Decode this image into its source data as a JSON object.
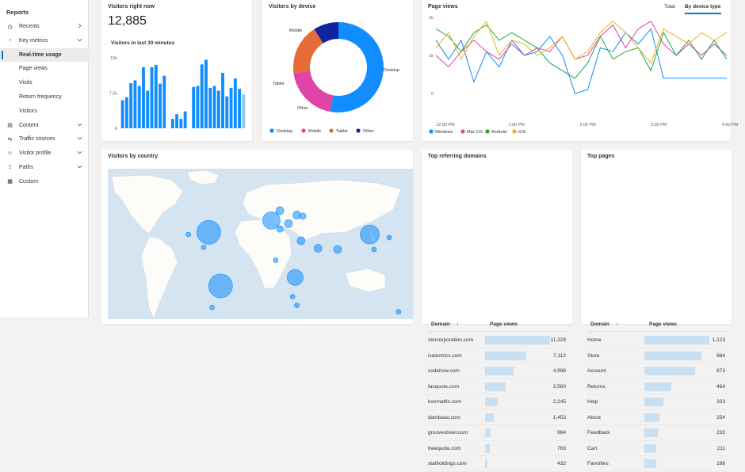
{
  "sidebar": {
    "title": "Reports",
    "items": [
      {
        "label": "Recents",
        "icon": "clock-icon",
        "chev": ">"
      },
      {
        "label": "Key metrics",
        "icon": "gauge-icon",
        "chev": "v"
      },
      {
        "label": "Real-time usage",
        "active": true
      },
      {
        "label": "Page views"
      },
      {
        "label": "Visits"
      },
      {
        "label": "Return frequency"
      },
      {
        "label": "Visitors"
      },
      {
        "label": "Content",
        "icon": "document-icon",
        "chev": "v"
      },
      {
        "label": "Traffic sources",
        "icon": "signpost-icon",
        "chev": "v"
      },
      {
        "label": "Visitor profile",
        "icon": "person-icon",
        "chev": "v"
      },
      {
        "label": "Paths",
        "icon": "path-icon",
        "chev": "v"
      },
      {
        "label": "Custom",
        "icon": "grid-icon"
      }
    ]
  },
  "visitors_now": {
    "title": "Visitors right now",
    "count": "12,885",
    "subtitle": "Visitors in last 30 minutes",
    "y_ticks": [
      "15k",
      "7.5k",
      "0"
    ]
  },
  "device": {
    "title": "Visitors by device",
    "labels": {
      "desktop": "Desktop",
      "mobile": "Mobile",
      "tablet": "Tablet",
      "other": "Other"
    },
    "legend": [
      "Desktop",
      "Mobile",
      "Tablet",
      "Other"
    ],
    "colors": [
      "#118dff",
      "#e044a7",
      "#e66c37",
      "#12239e"
    ]
  },
  "pageviews": {
    "title": "Page views",
    "tabs": [
      "Total",
      "By device type"
    ],
    "y_ticks": [
      "2k",
      "1k",
      "0"
    ],
    "x_ticks": [
      "12:00 PM",
      "1:00 PM",
      "2:00 PM",
      "3:00 PM",
      "4:00 PM"
    ],
    "legend": [
      "Windows",
      "Mac OS",
      "Android",
      "iOS"
    ],
    "colors": [
      "#118dff",
      "#e044a7",
      "#1aab40",
      "#e8b316"
    ]
  },
  "country": {
    "title": "Visitors by country"
  },
  "referring": {
    "title": "Top referring domains",
    "col_domain": "Domain",
    "col_views": "Page views",
    "rows": [
      {
        "domain": "zencorporation.com",
        "views": "11,329",
        "n": 11329
      },
      {
        "domain": "iselectrics.com",
        "views": "7,112",
        "n": 7112
      },
      {
        "domain": "codehow.com",
        "views": "4,998",
        "n": 4998
      },
      {
        "domain": "faxquote.com",
        "views": "3,560",
        "n": 3560
      },
      {
        "domain": "konmatfix.com",
        "views": "2,245",
        "n": 2245
      },
      {
        "domain": "dambase.com",
        "views": "1,453",
        "n": 1453
      },
      {
        "domain": "groovestreet.com",
        "views": "984",
        "n": 984
      },
      {
        "domain": "treequote.com",
        "views": "763",
        "n": 763
      },
      {
        "domain": "statholdings.com",
        "views": "432",
        "n": 432
      }
    ]
  },
  "toppages": {
    "title": "Top pages",
    "col_domain": "Domain",
    "col_views": "Page views",
    "rows": [
      {
        "domain": "Home",
        "views": "1,123",
        "n": 1123
      },
      {
        "domain": "Store",
        "views": "984",
        "n": 984
      },
      {
        "domain": "Account",
        "views": "873",
        "n": 873
      },
      {
        "domain": "Returns",
        "views": "464",
        "n": 464
      },
      {
        "domain": "Help",
        "views": "333",
        "n": 333
      },
      {
        "domain": "About",
        "views": "254",
        "n": 254
      },
      {
        "domain": "Feedback",
        "views": "232",
        "n": 232
      },
      {
        "domain": "Cart",
        "views": "211",
        "n": 211
      },
      {
        "domain": "Favorites",
        "views": "198",
        "n": 198
      }
    ]
  },
  "chart_data": [
    {
      "type": "bar",
      "title": "Visitors in last 30 minutes",
      "ylim": [
        0,
        15000
      ],
      "values": [
        6000,
        6600,
        9600,
        10200,
        9000,
        13000,
        8000,
        13000,
        13500,
        9500,
        11200,
        0,
        2000,
        3000,
        2000,
        3600,
        0,
        8800,
        9000,
        13600,
        14600,
        8600,
        9000,
        8000,
        11800,
        6800,
        8600,
        10600,
        8400,
        7200
      ],
      "highlight_last": true
    },
    {
      "type": "pie",
      "title": "Visitors by device",
      "categories": [
        "Desktop",
        "Mobile",
        "Tablet",
        "Other"
      ],
      "values": [
        53,
        20,
        18,
        9
      ]
    },
    {
      "type": "line",
      "title": "Page views",
      "ylim": [
        0,
        2000
      ],
      "series": [
        {
          "name": "Windows",
          "values": [
            1400,
            900,
            1400,
            300,
            1100,
            700,
            1400,
            1000,
            1100,
            1500,
            1000,
            0,
            100,
            1200,
            1100,
            1600,
            1300,
            1700,
            400,
            400,
            400,
            400,
            400,
            400
          ]
        },
        {
          "name": "Mac OS",
          "values": [
            1000,
            700,
            1100,
            1400,
            1100,
            900,
            1300,
            1000,
            1200,
            1100,
            1500,
            900,
            1000,
            1500,
            1800,
            1200,
            1700,
            1900,
            1300,
            1000,
            1300,
            1000,
            1300,
            1000
          ]
        },
        {
          "name": "Android",
          "values": [
            1700,
            1500,
            1100,
            1600,
            1800,
            1400,
            1600,
            1400,
            1200,
            800,
            600,
            400,
            800,
            1500,
            900,
            1100,
            1200,
            600,
            1600,
            1000,
            1400,
            900,
            1400,
            900
          ]
        },
        {
          "name": "iOS",
          "values": [
            1200,
            1600,
            900,
            1500,
            1900,
            1000,
            1400,
            1300,
            1000,
            1200,
            1500,
            900,
            1100,
            1600,
            1900,
            1600,
            1200,
            800,
            1700,
            1500,
            1300,
            1600,
            1400,
            1600
          ]
        }
      ]
    }
  ],
  "map_bubbles": [
    {
      "lon": -74,
      "lat": 40,
      "r": 15
    },
    {
      "lon": -98,
      "lat": 38,
      "r": 3
    },
    {
      "lon": -80,
      "lat": 26,
      "r": 3
    },
    {
      "lon": 0,
      "lat": 51,
      "r": 11
    },
    {
      "lon": 10,
      "lat": 60,
      "r": 5
    },
    {
      "lon": 20,
      "lat": 48,
      "r": 5
    },
    {
      "lon": 30,
      "lat": 56,
      "r": 5
    },
    {
      "lon": 37,
      "lat": 55,
      "r": 4
    },
    {
      "lon": 10,
      "lat": 43,
      "r": 4
    },
    {
      "lon": 35,
      "lat": 32,
      "r": 5
    },
    {
      "lon": 55,
      "lat": 25,
      "r": 5
    },
    {
      "lon": 78,
      "lat": 24,
      "r": 5
    },
    {
      "lon": 116,
      "lat": 38,
      "r": 12
    },
    {
      "lon": 139,
      "lat": 35,
      "r": 3
    },
    {
      "lon": 121,
      "lat": 24,
      "r": 3
    },
    {
      "lon": 5,
      "lat": 14,
      "r": 3
    },
    {
      "lon": 28,
      "lat": -2,
      "r": 10
    },
    {
      "lon": 25,
      "lat": -20,
      "r": 3
    },
    {
      "lon": 30,
      "lat": -28,
      "r": 3
    },
    {
      "lon": -60,
      "lat": -10,
      "r": 15
    },
    {
      "lon": -70,
      "lat": -30,
      "r": 3
    },
    {
      "lon": 150,
      "lat": -34,
      "r": 3
    }
  ]
}
